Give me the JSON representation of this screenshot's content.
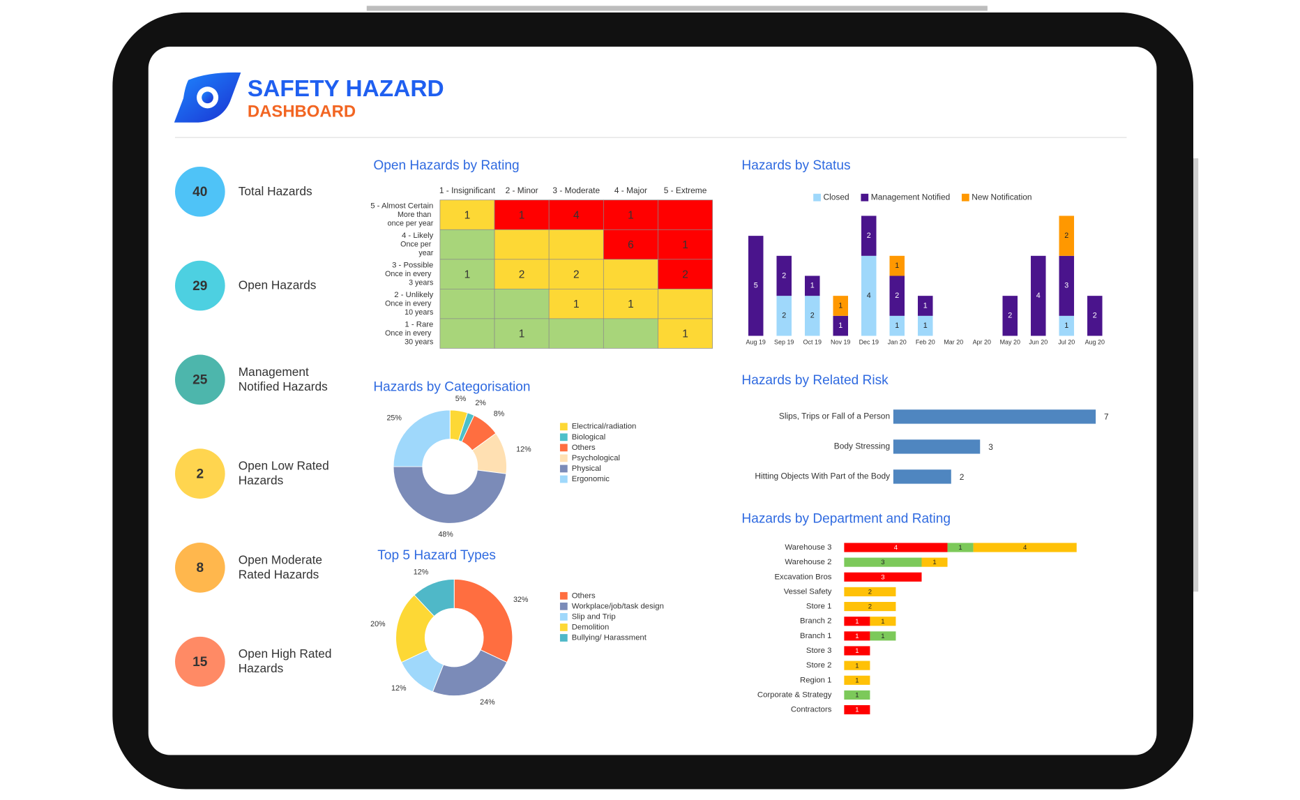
{
  "header": {
    "title": "SAFETY HAZARD",
    "subtitle": "DASHBOARD"
  },
  "kpis": [
    {
      "value": 40,
      "label": "Total Hazards",
      "color": "#4fc3f7"
    },
    {
      "value": 29,
      "label": "Open Hazards",
      "color": "#4dd0e1"
    },
    {
      "value": 25,
      "label": "Management Notified Hazards",
      "color": "#4db6ac"
    },
    {
      "value": 2,
      "label": "Open Low Rated Hazards",
      "color": "#ffd54f"
    },
    {
      "value": 8,
      "label": "Open Moderate Rated Hazards",
      "color": "#ffb74d"
    },
    {
      "value": 15,
      "label": "Open High Rated Hazards",
      "color": "#ff8a65"
    }
  ],
  "chart_data": [
    {
      "type": "heatmap",
      "title": "Open Hazards by Rating",
      "x_categories": [
        "1 - Insignificant",
        "2 - Minor",
        "3 - Moderate",
        "4 - Major",
        "5 - Extreme"
      ],
      "y_categories": [
        {
          "label": "5 - Almost Certain",
          "description": "More than once per year"
        },
        {
          "label": "4 - Likely",
          "description": "Once per year"
        },
        {
          "label": "3 - Possible",
          "description": "Once in every 3 years"
        },
        {
          "label": "2 - Unlikely",
          "description": "Once in every 10 years"
        },
        {
          "label": "1 - Rare",
          "description": "Once in every 30 years"
        }
      ],
      "values": [
        [
          1,
          1,
          4,
          1,
          null
        ],
        [
          null,
          null,
          null,
          6,
          1
        ],
        [
          1,
          2,
          2,
          null,
          2
        ],
        [
          null,
          null,
          1,
          1,
          null
        ],
        [
          null,
          1,
          null,
          null,
          1
        ]
      ],
      "cell_colors": [
        [
          "#fdd835",
          "#ff0000",
          "#ff0000",
          "#ff0000",
          "#ff0000"
        ],
        [
          "#a8d57a",
          "#fdd835",
          "#fdd835",
          "#ff0000",
          "#ff0000"
        ],
        [
          "#a8d57a",
          "#fdd835",
          "#fdd835",
          "#fdd835",
          "#ff0000"
        ],
        [
          "#a8d57a",
          "#a8d57a",
          "#fdd835",
          "#fdd835",
          "#fdd835"
        ],
        [
          "#a8d57a",
          "#a8d57a",
          "#a8d57a",
          "#a8d57a",
          "#fdd835"
        ]
      ]
    },
    {
      "type": "bar",
      "orientation": "vertical",
      "stacked": true,
      "title": "Hazards by Status",
      "categories": [
        "Aug 19",
        "Sep 19",
        "Oct 19",
        "Nov 19",
        "Dec 19",
        "Jan 20",
        "Feb 20",
        "Mar 20",
        "Apr 20",
        "May 20",
        "Jun 20",
        "Jul 20",
        "Aug 20"
      ],
      "series": [
        {
          "name": "Closed",
          "color": "#9fd8fb",
          "values": [
            null,
            2,
            2,
            null,
            4,
            1,
            1,
            null,
            null,
            null,
            null,
            1,
            null
          ]
        },
        {
          "name": "Management Notified",
          "color": "#4a148c",
          "values": [
            5,
            2,
            1,
            1,
            2,
            2,
            1,
            null,
            null,
            2,
            4,
            3,
            2
          ]
        },
        {
          "name": "New Notification",
          "color": "#ff9800",
          "values": [
            null,
            null,
            null,
            1,
            null,
            1,
            null,
            null,
            null,
            null,
            null,
            2,
            null
          ]
        }
      ]
    },
    {
      "type": "donut",
      "title": "Hazards by Categorisation",
      "categories": [
        "Electrical/radiation",
        "Biological",
        "Others",
        "Psychological",
        "Physical",
        "Ergonomic"
      ],
      "values": [
        5,
        2,
        8,
        12,
        48,
        25
      ],
      "value_labels": [
        "5%",
        "2%",
        "8%",
        "12%",
        "48%",
        "25%"
      ],
      "colors": [
        "#fdd835",
        "#4dc0c9",
        "#ff6e40",
        "#ffe0b2",
        "#7b8bb8",
        "#9fd8fb"
      ]
    },
    {
      "type": "donut",
      "title": "Top 5 Hazard Types",
      "categories": [
        "Others",
        "Workplace/job/task design",
        "Slip and Trip",
        "Demolition",
        "Bullying/ Harassment"
      ],
      "values": [
        32,
        24,
        12,
        20,
        12
      ],
      "value_labels": [
        "32%",
        "24%",
        "12%",
        "20%",
        "12%"
      ],
      "colors": [
        "#ff6e40",
        "#7b8bb8",
        "#9fd8fb",
        "#fdd835",
        "#4fb8c8"
      ]
    },
    {
      "type": "bar",
      "orientation": "horizontal",
      "title": "Hazards by Related Risk",
      "categories": [
        "Slips, Trips or Fall of a Person",
        "Body Stressing",
        "Hitting Objects With Part of the Body"
      ],
      "values": [
        7,
        3,
        2
      ],
      "color": "#4f86c0"
    },
    {
      "type": "bar",
      "orientation": "horizontal",
      "stacked": true,
      "title": "Hazards by Department and Rating",
      "categories": [
        "Warehouse 3",
        "Warehouse 2",
        "Excavation Bros",
        "Vessel Safety",
        "Store 1",
        "Branch 2",
        "Branch 1",
        "Store 3",
        "Store 2",
        "Region 1",
        "Corporate & Strategy",
        "Contractors"
      ],
      "series": [
        {
          "color": "#ff0000",
          "values": [
            4,
            null,
            3,
            null,
            null,
            1,
            1,
            1,
            null,
            null,
            null,
            1
          ]
        },
        {
          "color": "#7cc95a",
          "values": [
            1,
            3,
            null,
            null,
            null,
            null,
            1,
            null,
            null,
            null,
            1,
            null
          ]
        },
        {
          "color": "#ffc107",
          "values": [
            4,
            1,
            null,
            2,
            2,
            1,
            null,
            null,
            1,
            1,
            null,
            null
          ]
        }
      ]
    }
  ]
}
